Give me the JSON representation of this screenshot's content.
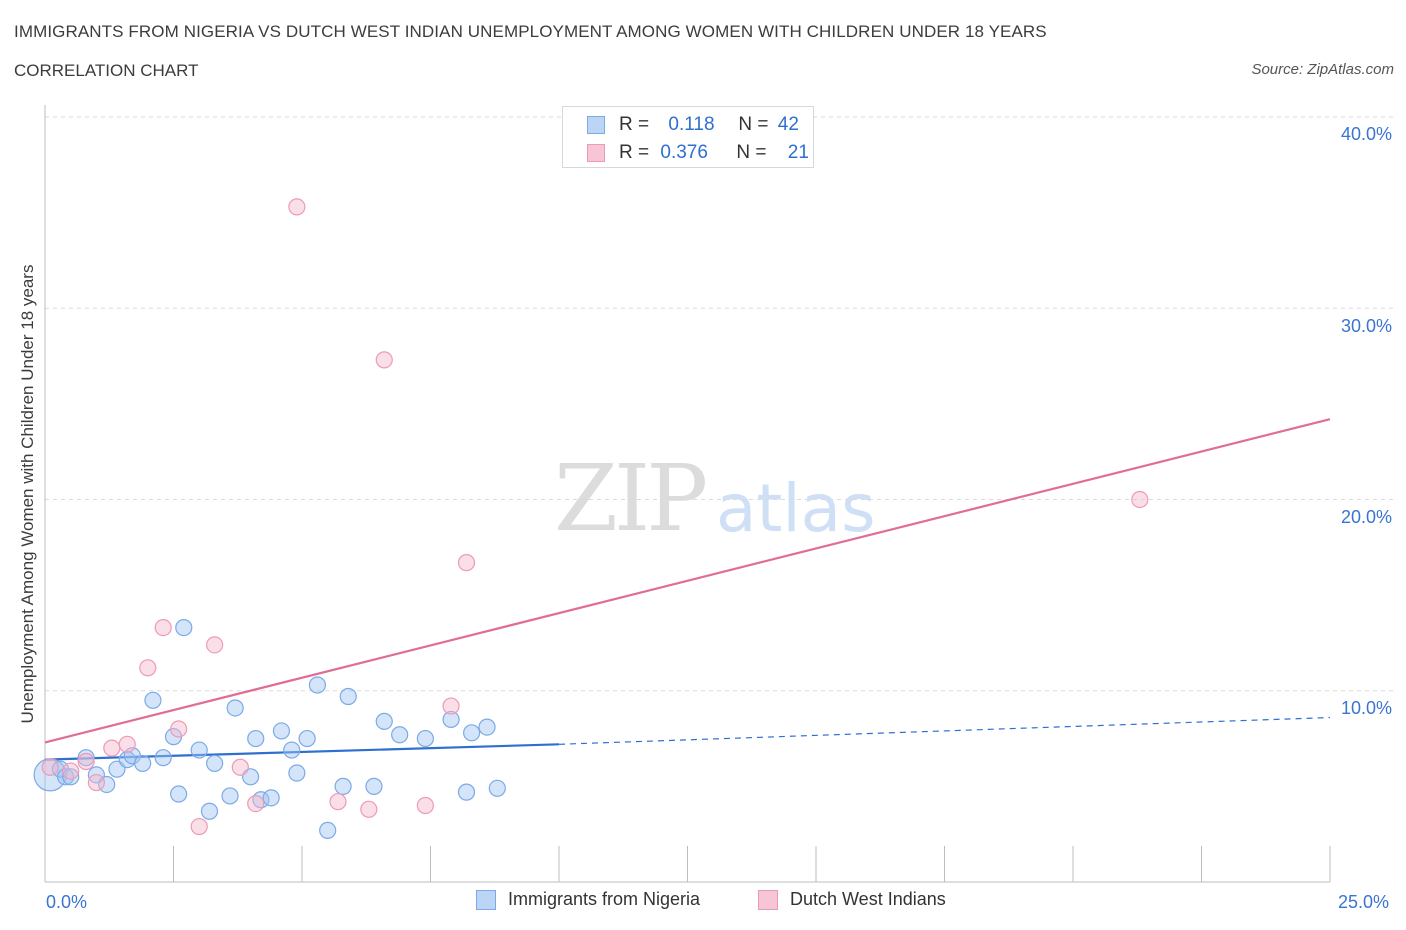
{
  "header": {
    "title": "IMMIGRANTS FROM NIGERIA VS DUTCH WEST INDIAN UNEMPLOYMENT AMONG WOMEN WITH CHILDREN UNDER 18 YEARS",
    "subtitle": "CORRELATION CHART",
    "source": "Source: ZipAtlas.com"
  },
  "watermark": {
    "zip": "ZIP",
    "atlas": "atlas"
  },
  "legend_top": {
    "rows": [
      {
        "r_label": "R = ",
        "r_value": "0.118",
        "n_label": "N = ",
        "n_value": "42",
        "color": "#7aaae8"
      },
      {
        "r_label": "R = ",
        "r_value": "0.376",
        "n_label": "N = ",
        "n_value": "21",
        "color": "#ee9ab5"
      }
    ]
  },
  "legend_bottom": {
    "items": [
      {
        "label": "Immigrants from Nigeria",
        "color": "#7aaae8"
      },
      {
        "label": "Dutch West Indians",
        "color": "#ee9ab5"
      }
    ]
  },
  "chart_data": {
    "type": "scatter",
    "title": "IMMIGRANTS FROM NIGERIA VS DUTCH WEST INDIAN UNEMPLOYMENT AMONG WOMEN WITH CHILDREN UNDER 18 YEARS",
    "xlabel": "",
    "ylabel": "Unemployment Among Women with Children Under 18 years",
    "xlim": [
      0,
      25
    ],
    "ylim": [
      0,
      40
    ],
    "x_tick_labels": [
      "0.0%",
      "25.0%"
    ],
    "y_ticks": [
      10,
      20,
      30,
      40
    ],
    "y_tick_labels": [
      "10.0%",
      "20.0%",
      "30.0%",
      "40.0%"
    ],
    "grid": true,
    "series": [
      {
        "name": "Immigrants from Nigeria",
        "color": "#7aaae8",
        "line_color": "#2f6fcf",
        "r": 0.118,
        "n": 42,
        "trend": {
          "x0": 0,
          "y0": 6.4,
          "x1": 10,
          "y1": 7.2,
          "dashed_to_x": 25,
          "dashed_to_y": 8.6
        },
        "points": [
          [
            0.1,
            5.6
          ],
          [
            0.3,
            5.9
          ],
          [
            0.4,
            5.5
          ],
          [
            0.5,
            5.5
          ],
          [
            0.8,
            6.5
          ],
          [
            1.0,
            5.6
          ],
          [
            1.2,
            5.1
          ],
          [
            1.4,
            5.9
          ],
          [
            1.6,
            6.4
          ],
          [
            1.7,
            6.6
          ],
          [
            1.9,
            6.2
          ],
          [
            2.1,
            9.5
          ],
          [
            2.3,
            6.5
          ],
          [
            2.5,
            7.6
          ],
          [
            2.6,
            4.6
          ],
          [
            2.7,
            13.3
          ],
          [
            3.0,
            6.9
          ],
          [
            3.2,
            3.7
          ],
          [
            3.3,
            6.2
          ],
          [
            3.6,
            4.5
          ],
          [
            3.7,
            9.1
          ],
          [
            4.0,
            5.5
          ],
          [
            4.1,
            7.5
          ],
          [
            4.2,
            4.3
          ],
          [
            4.4,
            4.4
          ],
          [
            4.6,
            7.9
          ],
          [
            4.8,
            6.9
          ],
          [
            4.9,
            5.7
          ],
          [
            5.1,
            7.5
          ],
          [
            5.3,
            10.3
          ],
          [
            5.5,
            2.7
          ],
          [
            5.8,
            5.0
          ],
          [
            5.9,
            9.7
          ],
          [
            6.4,
            5.0
          ],
          [
            6.6,
            8.4
          ],
          [
            6.9,
            7.7
          ],
          [
            7.4,
            7.5
          ],
          [
            7.9,
            8.5
          ],
          [
            8.2,
            4.7
          ],
          [
            8.3,
            7.8
          ],
          [
            8.6,
            8.1
          ],
          [
            8.8,
            4.9
          ]
        ]
      },
      {
        "name": "Dutch West Indians",
        "color": "#ee9ab5",
        "line_color": "#e06d95",
        "r": 0.376,
        "n": 21,
        "trend": {
          "x0": 0,
          "y0": 7.3,
          "x1": 25,
          "y1": 24.2
        },
        "points": [
          [
            0.1,
            6.0
          ],
          [
            0.8,
            6.3
          ],
          [
            1.0,
            5.2
          ],
          [
            1.3,
            7.0
          ],
          [
            1.6,
            7.2
          ],
          [
            2.0,
            11.2
          ],
          [
            2.3,
            13.3
          ],
          [
            2.6,
            8.0
          ],
          [
            3.0,
            2.9
          ],
          [
            3.3,
            12.4
          ],
          [
            3.8,
            6.0
          ],
          [
            4.1,
            4.1
          ],
          [
            4.9,
            35.3
          ],
          [
            5.7,
            4.2
          ],
          [
            6.3,
            3.8
          ],
          [
            6.6,
            27.3
          ],
          [
            7.4,
            4.0
          ],
          [
            7.9,
            9.2
          ],
          [
            8.2,
            16.7
          ],
          [
            21.3,
            20.0
          ],
          [
            0.5,
            5.8
          ]
        ]
      }
    ]
  }
}
